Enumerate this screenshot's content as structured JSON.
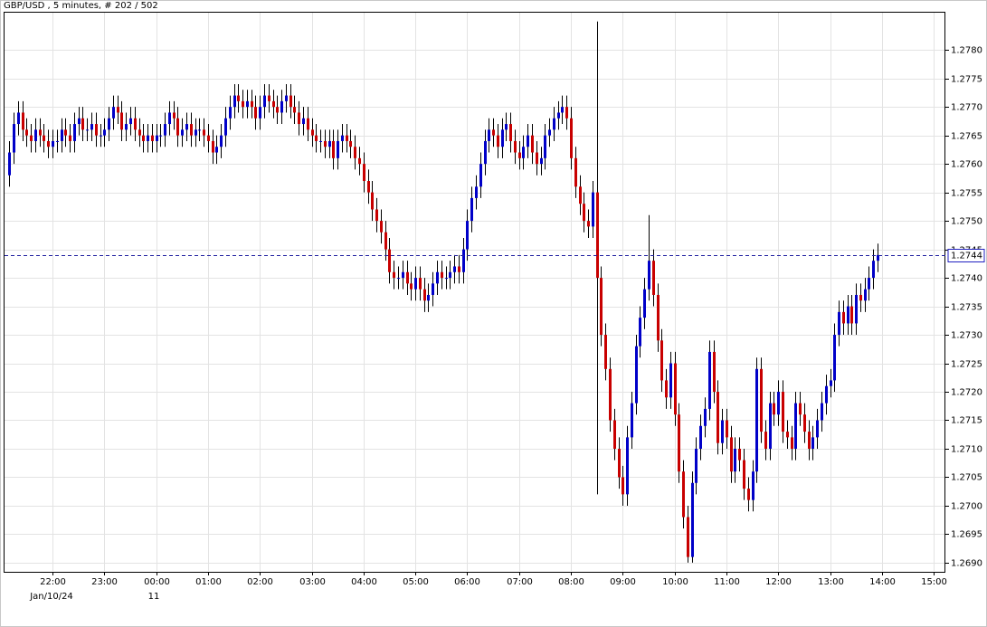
{
  "chart_data": {
    "type": "candlestick",
    "title": "GBP/USD , 5 minutes, # 202 / 502",
    "categories": [
      null,
      null,
      null,
      null,
      null,
      null,
      null,
      null,
      null,
      null,
      "22:00",
      null,
      null,
      null,
      null,
      null,
      null,
      null,
      null,
      null,
      null,
      null,
      "23:00",
      null,
      null,
      null,
      null,
      null,
      null,
      null,
      null,
      null,
      null,
      null,
      "00:00",
      null,
      null,
      null,
      null,
      null,
      null,
      null,
      null,
      null,
      null,
      null,
      "01:00",
      null,
      null,
      null,
      null,
      null,
      null,
      null,
      null,
      null,
      null,
      null,
      "02:00",
      null,
      null,
      null,
      null,
      null,
      null,
      null,
      null,
      null,
      null,
      null,
      "03:00",
      null,
      null,
      null,
      null,
      null,
      null,
      null,
      null,
      null,
      null,
      null,
      "04:00",
      null,
      null,
      null,
      null,
      null,
      null,
      null,
      null,
      null,
      null,
      null,
      "05:00",
      null,
      null,
      null,
      null,
      null,
      null,
      null,
      null,
      null,
      null,
      null,
      "06:00",
      null,
      null,
      null,
      null,
      null,
      null,
      null,
      null,
      null,
      null,
      null,
      "07:00",
      null,
      null,
      null,
      null,
      null,
      null,
      null,
      null,
      null,
      null,
      null,
      "08:00",
      null,
      null,
      null,
      null,
      null,
      null,
      null,
      null,
      null,
      null,
      null,
      "09:00",
      null,
      null,
      null,
      null,
      null,
      null,
      null,
      null,
      null,
      null,
      null,
      "10:00",
      null,
      null,
      null,
      null,
      null,
      null,
      null,
      null,
      null,
      null,
      null,
      "11:00",
      null,
      null,
      null,
      null,
      null,
      null,
      null,
      null,
      null,
      null,
      null,
      "12:00",
      null,
      null,
      null,
      null,
      null,
      null,
      null,
      null,
      null,
      null,
      null,
      "13:00",
      null,
      null,
      null,
      null,
      null,
      null,
      null,
      null,
      null,
      null,
      null,
      "14:00",
      null,
      null,
      null,
      null,
      null,
      null,
      null,
      null,
      null,
      null,
      null,
      "15:00"
    ],
    "open": [
      1.2758,
      1.2762,
      1.2767,
      1.2769,
      1.2766,
      1.2765,
      1.2764,
      1.2766,
      1.2765,
      1.2764,
      1.2763,
      1.2764,
      1.2764,
      1.2766,
      1.2765,
      1.2764,
      1.2767,
      1.2768,
      1.2766,
      1.2766,
      1.2767,
      1.2765,
      1.2765,
      1.2766,
      1.2768,
      1.277,
      1.2769,
      1.2766,
      1.2767,
      1.2768,
      1.2766,
      1.2765,
      1.2764,
      1.2765,
      1.2764,
      1.2765,
      1.2765,
      1.2767,
      1.2769,
      1.2768,
      1.2765,
      1.2766,
      1.2767,
      1.2765,
      1.2766,
      1.2766,
      1.2765,
      1.2764,
      1.2762,
      1.2763,
      1.2765,
      1.2768,
      1.277,
      1.2772,
      1.2771,
      1.277,
      1.2771,
      1.277,
      1.2768,
      1.277,
      1.2772,
      1.2771,
      1.277,
      1.2769,
      1.2771,
      1.2772,
      1.277,
      1.2769,
      1.2767,
      1.2768,
      1.2766,
      1.2765,
      1.2764,
      1.2764,
      1.2763,
      1.2764,
      1.2761,
      1.2764,
      1.2765,
      1.2764,
      1.2763,
      1.2761,
      1.276,
      1.2757,
      1.2755,
      1.2752,
      1.275,
      1.2748,
      1.2745,
      1.2741,
      1.274,
      1.274,
      1.2741,
      1.2739,
      1.2738,
      1.274,
      1.2738,
      1.2736,
      1.2737,
      1.2739,
      1.2741,
      1.274,
      1.274,
      1.2741,
      1.2742,
      1.2741,
      1.2745,
      1.275,
      1.2754,
      1.2756,
      1.276,
      1.2764,
      1.2766,
      1.2765,
      1.2763,
      1.2766,
      1.2767,
      1.2764,
      1.2762,
      1.2761,
      1.2763,
      1.2765,
      1.2762,
      1.276,
      1.2761,
      1.2765,
      1.2766,
      1.2768,
      1.2769,
      1.277,
      1.2768,
      1.2761,
      1.2756,
      1.2753,
      1.275,
      1.2749,
      1.2755,
      1.274,
      1.273,
      1.2724,
      1.2715,
      1.271,
      1.2705,
      1.2702,
      1.2712,
      1.2718,
      1.2728,
      1.2733,
      1.2738,
      1.2743,
      1.2737,
      1.2729,
      1.2722,
      1.2719,
      1.2725,
      1.2716,
      1.2706,
      1.2698,
      1.2691,
      1.2704,
      1.271,
      1.2714,
      1.2717,
      1.2727,
      1.272,
      1.2711,
      1.2715,
      1.2712,
      1.2706,
      1.271,
      1.2708,
      1.2703,
      1.2701,
      1.2706,
      1.2724,
      1.2713,
      1.271,
      1.2718,
      1.2716,
      1.272,
      1.2713,
      1.2712,
      1.271,
      1.2718,
      1.2716,
      1.2713,
      1.271,
      1.2712,
      1.2715,
      1.2718,
      1.2721,
      1.2722,
      1.273,
      1.2734,
      1.2732,
      1.2735,
      1.2732,
      1.2737,
      1.2736,
      1.2738,
      1.274,
      1.2743,
      null,
      null,
      null,
      null,
      null,
      null,
      null,
      null,
      null,
      null,
      null,
      null,
      null
    ],
    "high": [
      1.2764,
      1.2769,
      1.2771,
      1.2771,
      1.2768,
      1.2767,
      1.2768,
      1.2768,
      1.2767,
      1.2766,
      1.2766,
      1.2766,
      1.2768,
      1.2768,
      1.2767,
      1.2769,
      1.277,
      1.277,
      1.2768,
      1.2769,
      1.2769,
      1.2767,
      1.2768,
      1.277,
      1.2772,
      1.2772,
      1.2771,
      1.2769,
      1.277,
      1.277,
      1.2768,
      1.2767,
      1.2767,
      1.2767,
      1.2767,
      1.2767,
      1.2769,
      1.2771,
      1.2771,
      1.277,
      1.2768,
      1.2769,
      1.2769,
      1.2768,
      1.2768,
      1.2768,
      1.2767,
      1.2766,
      1.2765,
      1.2767,
      1.277,
      1.2772,
      1.2774,
      1.2774,
      1.2773,
      1.2773,
      1.2773,
      1.2772,
      1.2772,
      1.2774,
      1.2774,
      1.2773,
      1.2772,
      1.2773,
      1.2774,
      1.2774,
      1.2772,
      1.2771,
      1.277,
      1.277,
      1.2768,
      1.2767,
      1.2766,
      1.2766,
      1.2766,
      1.2766,
      1.2766,
      1.2767,
      1.2767,
      1.2766,
      1.2765,
      1.2763,
      1.2762,
      1.2759,
      1.2757,
      1.2754,
      1.2752,
      1.275,
      1.2747,
      1.2743,
      1.2742,
      1.2743,
      1.2743,
      1.2741,
      1.2742,
      1.2742,
      1.274,
      1.2739,
      1.2741,
      1.2743,
      1.2743,
      1.2742,
      1.2743,
      1.2744,
      1.2744,
      1.2747,
      1.2752,
      1.2756,
      1.2758,
      1.2762,
      1.2766,
      1.2768,
      1.2768,
      1.2767,
      1.2768,
      1.2769,
      1.2769,
      1.2766,
      1.2764,
      1.2765,
      1.2767,
      1.2767,
      1.2764,
      1.2763,
      1.2767,
      1.2768,
      1.277,
      1.2771,
      1.2772,
      1.2772,
      1.277,
      1.2763,
      1.2758,
      1.2755,
      1.2752,
      1.2757,
      1.2785,
      1.2742,
      1.2732,
      1.2726,
      1.2717,
      1.2712,
      1.2707,
      1.2714,
      1.272,
      1.273,
      1.2735,
      1.274,
      1.2751,
      1.2745,
      1.2739,
      1.2731,
      1.2724,
      1.2727,
      1.2727,
      1.2718,
      1.2708,
      1.27,
      1.2706,
      1.2712,
      1.2716,
      1.2719,
      1.2729,
      1.2729,
      1.2722,
      1.2717,
      1.2717,
      1.2714,
      1.2712,
      1.2712,
      1.271,
      1.2705,
      1.2708,
      1.2726,
      1.2726,
      1.2715,
      1.272,
      1.272,
      1.2722,
      1.2722,
      1.2715,
      1.2714,
      1.272,
      1.272,
      1.2718,
      1.2715,
      1.2714,
      1.2717,
      1.272,
      1.2723,
      1.2724,
      1.2732,
      1.2736,
      1.2736,
      1.2737,
      1.2737,
      1.2739,
      1.2739,
      1.274,
      1.2742,
      1.2745,
      1.2746,
      null,
      null,
      null,
      null,
      null,
      null,
      null,
      null,
      null,
      null,
      null,
      null,
      null
    ],
    "low": [
      1.2756,
      1.276,
      1.2765,
      1.2764,
      1.2763,
      1.2762,
      1.2762,
      1.2763,
      1.2762,
      1.2761,
      1.2761,
      1.2762,
      1.2762,
      1.2763,
      1.2762,
      1.2762,
      1.2765,
      1.2764,
      1.2764,
      1.2764,
      1.2763,
      1.2763,
      1.2763,
      1.2764,
      1.2766,
      1.2767,
      1.2764,
      1.2764,
      1.2765,
      1.2764,
      1.2763,
      1.2762,
      1.2762,
      1.2762,
      1.2762,
      1.2763,
      1.2763,
      1.2765,
      1.2766,
      1.2763,
      1.2763,
      1.2764,
      1.2763,
      1.2763,
      1.2764,
      1.2763,
      1.2762,
      1.276,
      1.276,
      1.2761,
      1.2763,
      1.2766,
      1.2768,
      1.2769,
      1.2768,
      1.2768,
      1.2768,
      1.2766,
      1.2766,
      1.2768,
      1.2769,
      1.2768,
      1.2767,
      1.2767,
      1.2769,
      1.2768,
      1.2767,
      1.2765,
      1.2765,
      1.2764,
      1.2763,
      1.2762,
      1.2762,
      1.2761,
      1.2761,
      1.2759,
      1.2759,
      1.2762,
      1.2762,
      1.2761,
      1.2759,
      1.2758,
      1.2755,
      1.2753,
      1.275,
      1.2748,
      1.2746,
      1.2743,
      1.2739,
      1.2738,
      1.2738,
      1.2738,
      1.2737,
      1.2736,
      1.2736,
      1.2736,
      1.2734,
      1.2734,
      1.2735,
      1.2737,
      1.2738,
      1.2738,
      1.2738,
      1.2739,
      1.2739,
      1.2739,
      1.2743,
      1.2748,
      1.2752,
      1.2754,
      1.2758,
      1.2762,
      1.2763,
      1.2761,
      1.2761,
      1.2764,
      1.2762,
      1.276,
      1.2759,
      1.2759,
      1.2761,
      1.276,
      1.2758,
      1.2758,
      1.2759,
      1.2763,
      1.2764,
      1.2766,
      1.2767,
      1.2766,
      1.2759,
      1.2754,
      1.2751,
      1.2748,
      1.2747,
      1.2747,
      1.2702,
      1.2728,
      1.2722,
      1.2713,
      1.2708,
      1.2703,
      1.27,
      1.27,
      1.271,
      1.2716,
      1.2726,
      1.2731,
      1.2736,
      1.2735,
      1.2727,
      1.272,
      1.2717,
      1.2717,
      1.2714,
      1.2704,
      1.2696,
      1.269,
      1.269,
      1.2702,
      1.2708,
      1.2712,
      1.2715,
      1.2718,
      1.2709,
      1.2709,
      1.271,
      1.2704,
      1.2704,
      1.2706,
      1.2701,
      1.2699,
      1.2699,
      1.2704,
      1.2711,
      1.2708,
      1.2708,
      1.2714,
      1.2714,
      1.2711,
      1.271,
      1.2708,
      1.2708,
      1.2714,
      1.2711,
      1.2708,
      1.2708,
      1.271,
      1.2713,
      1.2716,
      1.2719,
      1.272,
      1.2728,
      1.273,
      1.273,
      1.273,
      1.273,
      1.2734,
      1.2734,
      1.2736,
      1.2738,
      1.2741,
      null,
      null,
      null,
      null,
      null,
      null,
      null,
      null,
      null,
      null,
      null,
      null,
      null
    ],
    "close": [
      1.2762,
      1.2767,
      1.2769,
      1.2766,
      1.2765,
      1.2764,
      1.2766,
      1.2765,
      1.2764,
      1.2763,
      1.2764,
      1.2764,
      1.2766,
      1.2765,
      1.2764,
      1.2767,
      1.2768,
      1.2766,
      1.2766,
      1.2767,
      1.2765,
      1.2765,
      1.2766,
      1.2768,
      1.277,
      1.2769,
      1.2766,
      1.2767,
      1.2768,
      1.2766,
      1.2765,
      1.2764,
      1.2765,
      1.2764,
      1.2765,
      1.2765,
      1.2767,
      1.2769,
      1.2768,
      1.2765,
      1.2766,
      1.2767,
      1.2765,
      1.2766,
      1.2766,
      1.2765,
      1.2764,
      1.2762,
      1.2763,
      1.2765,
      1.2768,
      1.277,
      1.2772,
      1.2771,
      1.277,
      1.2771,
      1.277,
      1.2768,
      1.277,
      1.2772,
      1.2771,
      1.277,
      1.2769,
      1.2771,
      1.2772,
      1.277,
      1.2769,
      1.2767,
      1.2768,
      1.2766,
      1.2765,
      1.2764,
      1.2764,
      1.2763,
      1.2764,
      1.2761,
      1.2764,
      1.2765,
      1.2764,
      1.2763,
      1.2761,
      1.276,
      1.2757,
      1.2755,
      1.2752,
      1.275,
      1.2748,
      1.2745,
      1.2741,
      1.274,
      1.274,
      1.2741,
      1.2739,
      1.2738,
      1.274,
      1.2738,
      1.2736,
      1.2737,
      1.2739,
      1.2741,
      1.274,
      1.274,
      1.2741,
      1.2742,
      1.2741,
      1.2745,
      1.275,
      1.2754,
      1.2756,
      1.276,
      1.2764,
      1.2766,
      1.2765,
      1.2763,
      1.2766,
      1.2767,
      1.2764,
      1.2762,
      1.2761,
      1.2763,
      1.2765,
      1.2762,
      1.276,
      1.2761,
      1.2765,
      1.2766,
      1.2768,
      1.2769,
      1.277,
      1.2768,
      1.2761,
      1.2756,
      1.2753,
      1.275,
      1.2749,
      1.2755,
      1.274,
      1.273,
      1.2724,
      1.2715,
      1.271,
      1.2705,
      1.2702,
      1.2712,
      1.2718,
      1.2728,
      1.2733,
      1.2738,
      1.2743,
      1.2737,
      1.2729,
      1.2722,
      1.2719,
      1.2725,
      1.2716,
      1.2706,
      1.2698,
      1.2691,
      1.2704,
      1.271,
      1.2714,
      1.2717,
      1.2727,
      1.272,
      1.2711,
      1.2715,
      1.2712,
      1.2706,
      1.271,
      1.2708,
      1.2703,
      1.2701,
      1.2706,
      1.2724,
      1.2713,
      1.271,
      1.2718,
      1.2716,
      1.272,
      1.2713,
      1.2712,
      1.271,
      1.2718,
      1.2716,
      1.2713,
      1.271,
      1.2712,
      1.2715,
      1.2718,
      1.2721,
      1.2722,
      1.273,
      1.2734,
      1.2732,
      1.2735,
      1.2732,
      1.2737,
      1.2736,
      1.2738,
      1.274,
      1.2743,
      1.2744,
      null,
      null,
      null,
      null,
      null,
      null,
      null,
      null,
      null,
      null,
      null,
      null,
      null
    ],
    "up_color": "#0000c8",
    "down_color": "#c80000",
    "ylim": [
      1.26884,
      1.27867
    ],
    "yticks": [
      {
        "value": 1.269,
        "label": "1.2690"
      },
      {
        "value": 1.2695,
        "label": "1.2695"
      },
      {
        "value": 1.27,
        "label": "1.2700"
      },
      {
        "value": 1.2705,
        "label": "1.2705"
      },
      {
        "value": 1.271,
        "label": "1.2710"
      },
      {
        "value": 1.2715,
        "label": "1.2715"
      },
      {
        "value": 1.272,
        "label": "1.2720"
      },
      {
        "value": 1.2725,
        "label": "1.2725"
      },
      {
        "value": 1.273,
        "label": "1.2730"
      },
      {
        "value": 1.2735,
        "label": "1.2735"
      },
      {
        "value": 1.274,
        "label": "1.2740"
      },
      {
        "value": 1.2745,
        "label": "1.2745"
      },
      {
        "value": 1.275,
        "label": "1.2750"
      },
      {
        "value": 1.2755,
        "label": "1.2755"
      },
      {
        "value": 1.276,
        "label": "1.2760"
      },
      {
        "value": 1.2765,
        "label": "1.2765"
      },
      {
        "value": 1.277,
        "label": "1.2770"
      },
      {
        "value": 1.2775,
        "label": "1.2775"
      },
      {
        "value": 1.278,
        "label": "1.2780"
      }
    ],
    "grid": true,
    "last_price": {
      "value": 1.2744,
      "label": "1.2744"
    },
    "date_labels": [
      "Jan/10/24",
      "11"
    ]
  }
}
